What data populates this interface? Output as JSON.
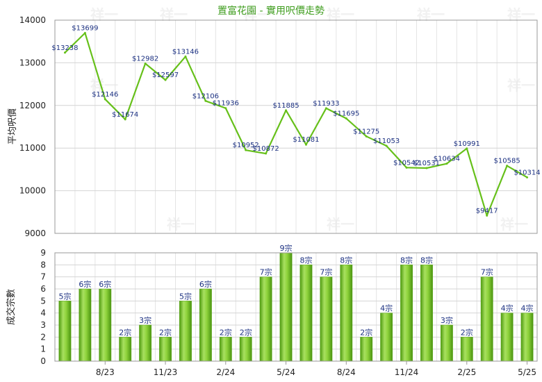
{
  "chart_data": [
    {
      "type": "line",
      "title": "置富花園 - 實用呎價走勢",
      "ylabel": "平均呎價",
      "ylim": [
        9000,
        14000
      ],
      "yticks": [
        9000,
        10000,
        11000,
        12000,
        13000,
        14000
      ],
      "grid": true,
      "series": [
        {
          "values": [
            13238,
            13699,
            12146,
            11674,
            12982,
            12597,
            13146,
            12106,
            11936,
            10952,
            10872,
            11885,
            11081,
            11933,
            11695,
            11275,
            11053,
            10542,
            10531,
            10634,
            10991,
            9417,
            10585,
            10314
          ],
          "labels": [
            "$13238",
            "$13699",
            "$12146",
            "$11674",
            "$12982",
            "$12597",
            "$13146",
            "$12106",
            "$11936",
            "$10952",
            "$10872",
            "$11885",
            "$11081",
            "$11933",
            "$11695",
            "$11275",
            "$11053",
            "$10542",
            "$10531",
            "$10634",
            "$10991",
            "$9417",
            "$10585",
            "$10314"
          ],
          "color": "#66c01a"
        }
      ]
    },
    {
      "type": "bar",
      "ylabel": "成交宗數",
      "ylim": [
        0,
        9
      ],
      "yticks": [
        0,
        1,
        2,
        3,
        4,
        5,
        6,
        7,
        8,
        9
      ],
      "grid": true,
      "xticks": [
        "8/23",
        "11/23",
        "2/24",
        "5/24",
        "8/24",
        "11/24",
        "2/25",
        "5/25"
      ],
      "series": [
        {
          "values": [
            5,
            6,
            6,
            2,
            3,
            2,
            5,
            6,
            2,
            2,
            7,
            9,
            8,
            7,
            8,
            2,
            4,
            8,
            8,
            3,
            2,
            7,
            4,
            4
          ],
          "labels": [
            "5宗",
            "6宗",
            "6宗",
            "2宗",
            "3宗",
            "2宗",
            "5宗",
            "6宗",
            "2宗",
            "2宗",
            "7宗",
            "9宗",
            "8宗",
            "7宗",
            "8宗",
            "2宗",
            "4宗",
            "8宗",
            "8宗",
            "3宗",
            "2宗",
            "7宗",
            "4宗",
            "4宗"
          ],
          "color": "#7dc929"
        }
      ]
    }
  ],
  "watermark": "祥一"
}
